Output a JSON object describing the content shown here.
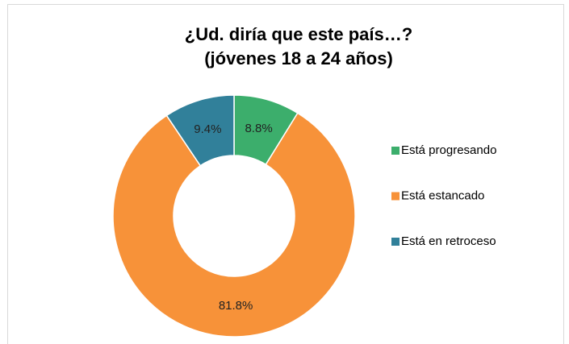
{
  "chart_data": {
    "type": "donut",
    "title": [
      "¿Ud. diría que este país…?",
      "(jóvenes 18 a 24 años)"
    ],
    "categories": [
      "Está progresando",
      "Está estancado",
      "Está en retroceso"
    ],
    "values": [
      8.8,
      81.8,
      9.4
    ],
    "value_labels": [
      "8.8%",
      "81.8%",
      "9.4%"
    ],
    "colors": [
      "#3cae6c",
      "#f79239",
      "#31809a"
    ],
    "legend": "right"
  }
}
